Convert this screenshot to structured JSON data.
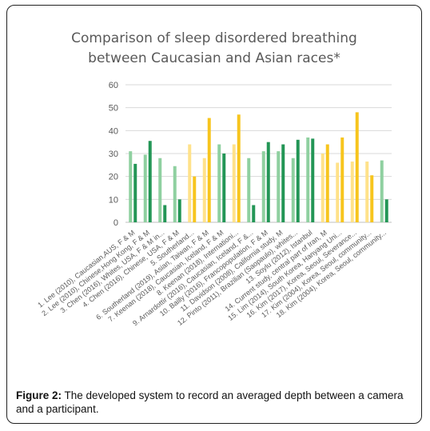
{
  "chart_data": {
    "type": "bar",
    "title_line1": "Comparison of sleep disordered breathing",
    "title_line2": "between Caucasian and Asian races*",
    "ylim": [
      0,
      60
    ],
    "yticks": [
      "0",
      "10",
      "20",
      "30",
      "40",
      "50",
      "60"
    ],
    "grid": true,
    "categories": [
      "1. Lee (2010), Caucasian,AUS, F & M",
      "2. Lee (2010), Chinese,Hong Kong, F & M",
      "3. Chen (2016), Whites, USA, F & M in...",
      "4. Chen (2016), Chinese, USA, F & M",
      "5. Southerland...",
      "6. Southerland (2019), Asian, Taiwan, F & M",
      "7. Keenan (2018), Caucasian, Iceland, F & M",
      "8. Keenan (2018), Internationi...",
      "9. Arnardottir (2016), Caucasian, Iceland, F &...",
      "10. Bailly (2016), Francopopulation, F & M",
      "11. Davidson (2008), California study, M",
      "12. Pinto (2011), Brazilian (Saopaulo), whites...",
      "13. Soylu (2012), Istanbul",
      "14. Current study, central part of Iran, M",
      "15. Lim (2014), South Korea, Hanyang Uni...",
      "16. Kim (2017), Korea, Seoul, Severance...",
      "17. Kim (2004), Korea, Seoul, community...",
      "18. Kim (2004), Korea, Seoul, community..."
    ],
    "series": [
      {
        "values": [
          31,
          29.5,
          28,
          24.5,
          34,
          28,
          34,
          34,
          28,
          31,
          31,
          28,
          37,
          30,
          26,
          26.5,
          26.5,
          27
        ]
      },
      {
        "values": [
          25.5,
          35.5,
          7.5,
          10,
          20,
          45.5,
          30,
          47,
          7.5,
          35,
          34,
          36,
          36.5,
          34,
          37,
          48,
          20.5,
          10
        ]
      }
    ],
    "colors": {
      "caucasian_light": "#8fd0a0",
      "caucasian_dark": "#239656",
      "asian_light": "#ffe28a",
      "asian_dark": "#f7c51e",
      "grid": "#d9d9d9",
      "tick_text": "#595959"
    }
  },
  "caption": {
    "label": "Figure 2:",
    "text": " The developed system to record an averaged depth between a camera and a participant."
  }
}
